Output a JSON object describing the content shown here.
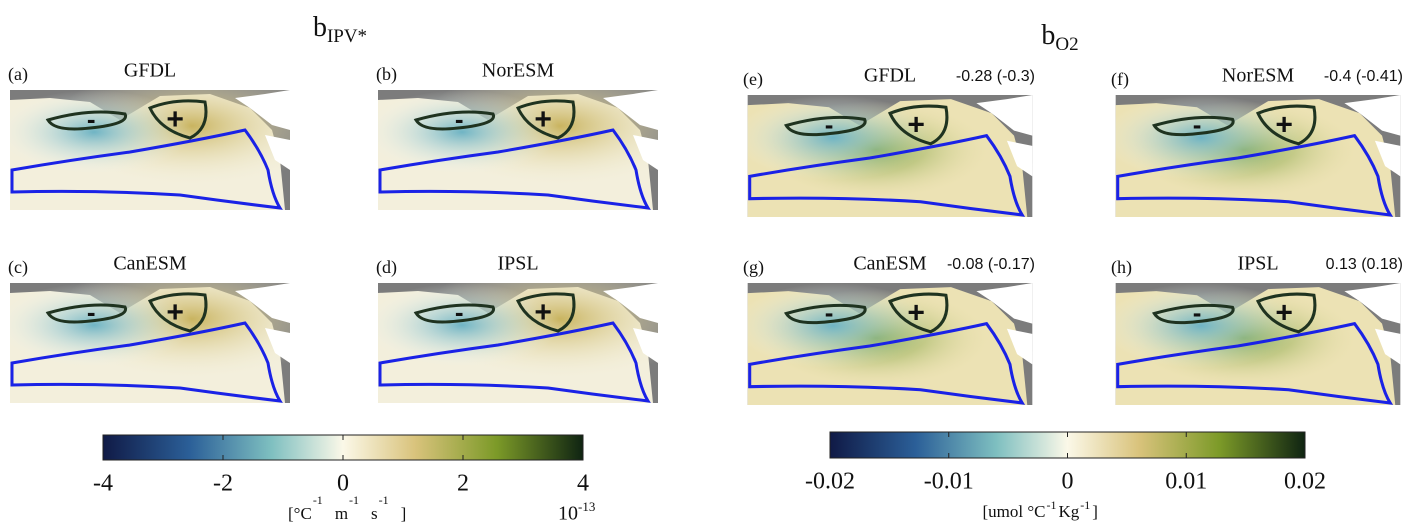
{
  "left": {
    "title": {
      "base": "b",
      "sub": "IPV*"
    },
    "panels": [
      {
        "label": "(a)",
        "name": "GFDL"
      },
      {
        "label": "(b)",
        "name": "NorESM"
      },
      {
        "label": "(c)",
        "name": "CanESM"
      },
      {
        "label": "(d)",
        "name": "IPSL"
      }
    ],
    "colorbar": {
      "lim": [
        -4,
        4
      ],
      "ticks": [
        -4,
        -2,
        0,
        2,
        4
      ],
      "units": {
        "parts": [
          "[°C",
          "m",
          "s",
          "]"
        ],
        "exponent": "-1"
      },
      "multiplier": {
        "base": "10",
        "exponent": "-13"
      }
    }
  },
  "right": {
    "title": {
      "base": "b",
      "sub": "O2"
    },
    "panels": [
      {
        "label": "(e)",
        "name": "GFDL",
        "stats": "-0.28 (-0.3)"
      },
      {
        "label": "(f)",
        "name": "NorESM",
        "stats": "-0.4 (-0.41)"
      },
      {
        "label": "(g)",
        "name": "CanESM",
        "stats": "-0.08 (-0.17)"
      },
      {
        "label": "(h)",
        "name": "IPSL",
        "stats": "0.13 (0.18)"
      }
    ],
    "colorbar": {
      "lim": [
        -0.02,
        0.02
      ],
      "ticks": [
        -0.02,
        -0.01,
        0,
        0.01,
        0.02
      ],
      "units": {
        "parts": [
          "[umol °C",
          "Kg",
          "]"
        ],
        "exponent": "-1"
      }
    }
  },
  "map_signs": {
    "minus": "-",
    "plus": "+"
  }
}
